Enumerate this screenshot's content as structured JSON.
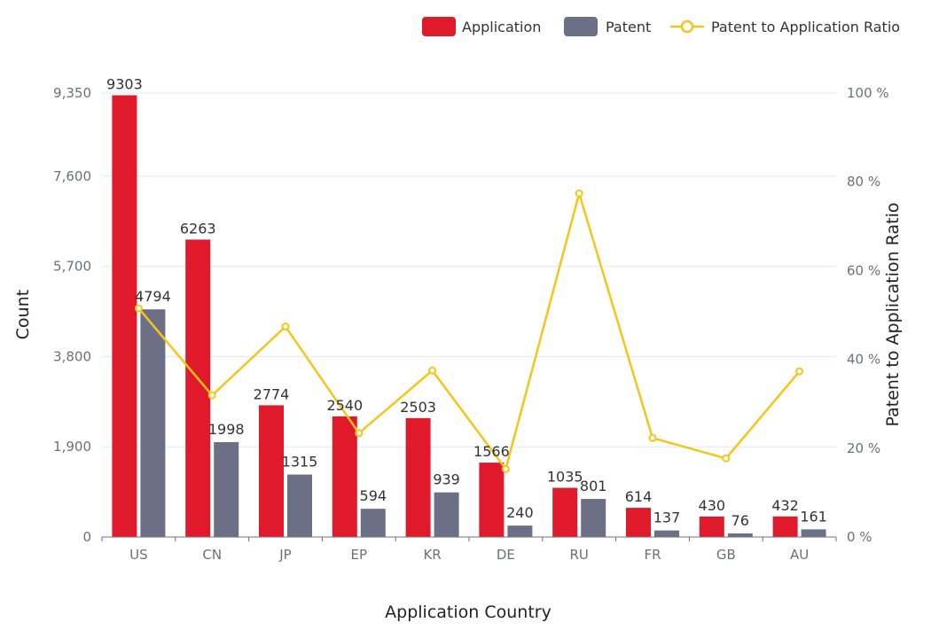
{
  "chart_data": {
    "type": "bar",
    "categories": [
      "US",
      "CN",
      "JP",
      "EP",
      "KR",
      "DE",
      "RU",
      "FR",
      "GB",
      "AU"
    ],
    "series": [
      {
        "name": "Application",
        "type": "bar",
        "color": "#e01a2b",
        "axis": "left",
        "values": [
          9303,
          6263,
          2774,
          2540,
          2503,
          1566,
          1035,
          614,
          430,
          432
        ]
      },
      {
        "name": "Patent",
        "type": "bar",
        "color": "#6b7087",
        "axis": "left",
        "values": [
          4794,
          1998,
          1315,
          594,
          939,
          240,
          801,
          137,
          76,
          161
        ]
      },
      {
        "name": "Patent to Application Ratio",
        "type": "line",
        "color": "#f5c518",
        "axis": "right",
        "values": [
          51.5,
          31.9,
          47.4,
          23.4,
          37.5,
          15.3,
          77.4,
          22.3,
          17.7,
          37.3
        ]
      }
    ],
    "xlabel": "Application Country",
    "ylabel": "Count",
    "ylabel_right": "Patent to Application Ratio",
    "ylim": [
      0,
      9350
    ],
    "yticks": [
      "0",
      "1,900",
      "3,800",
      "5,700",
      "7,600",
      "9,350"
    ],
    "y2lim": [
      0,
      100
    ],
    "y2ticks": [
      "0 %",
      "20 %",
      "40 %",
      "60 %",
      "80 %",
      "100 %"
    ],
    "legend_position": "top-right",
    "grid": true
  }
}
